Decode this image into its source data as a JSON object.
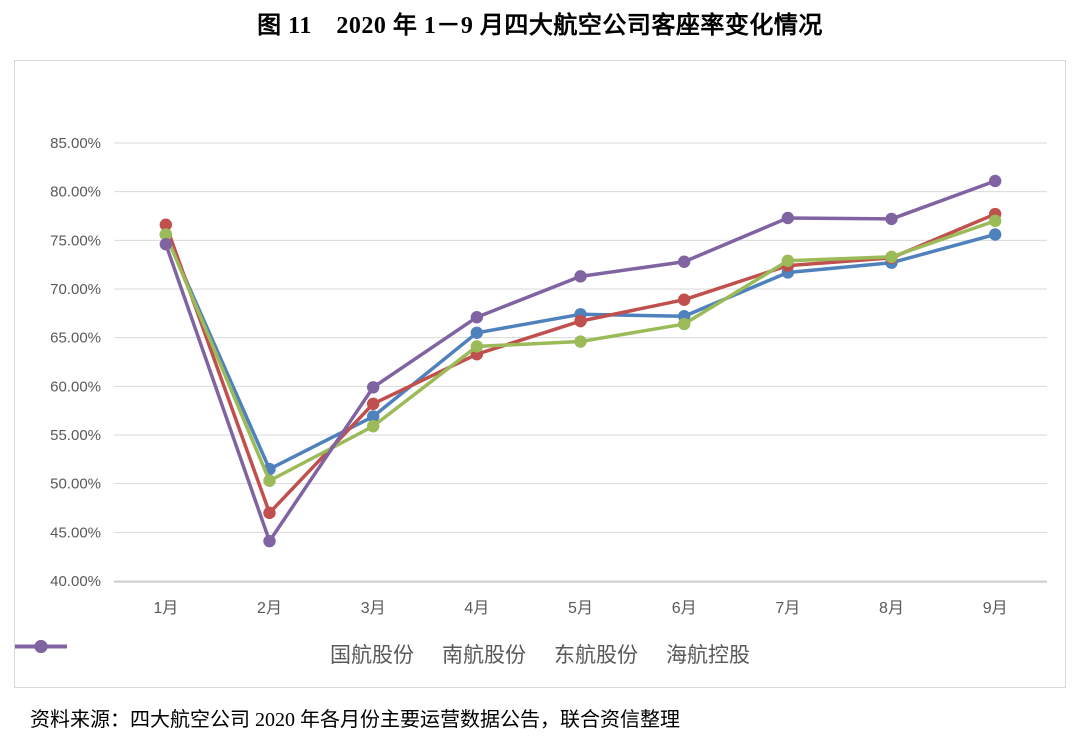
{
  "title": "图 11　2020 年 1－9 月四大航空公司客座率变化情况",
  "source_note": "资料来源：四大航空公司 2020 年各月份主要运营数据公告，联合资信整理",
  "colors": {
    "grid": "#d9d9d9",
    "axis": "#bfbfbf",
    "tick_text": "#595959",
    "frame_border": "#d9d9d9"
  },
  "chart_data": {
    "type": "line",
    "title": "图 11　2020 年 1－9 月四大航空公司客座率变化情况",
    "categories": [
      "1月",
      "2月",
      "3月",
      "4月",
      "5月",
      "6月",
      "7月",
      "8月",
      "9月"
    ],
    "series": [
      {
        "name": "国航股份",
        "color": "#4F81BD",
        "values": [
          75.6,
          51.5,
          56.9,
          65.5,
          67.4,
          67.2,
          71.7,
          72.7,
          75.6
        ]
      },
      {
        "name": "南航股份",
        "color": "#C0504D",
        "values": [
          76.6,
          47.0,
          58.2,
          63.3,
          66.7,
          68.9,
          72.4,
          73.2,
          77.7
        ]
      },
      {
        "name": "东航股份",
        "color": "#9BBB59",
        "values": [
          75.6,
          50.3,
          55.9,
          64.1,
          64.6,
          66.4,
          72.9,
          73.3,
          77.0
        ]
      },
      {
        "name": "海航控股",
        "color": "#8064A2",
        "values": [
          74.6,
          44.1,
          59.9,
          67.1,
          71.3,
          72.8,
          77.3,
          77.2,
          81.1
        ]
      }
    ],
    "xlabel": "",
    "ylabel": "",
    "ylim": [
      40,
      85
    ],
    "ytick_step": 5,
    "ytick_labels": [
      "40.00%",
      "45.00%",
      "50.00%",
      "55.00%",
      "60.00%",
      "65.00%",
      "70.00%",
      "75.00%",
      "80.00%",
      "85.00%"
    ],
    "grid": true,
    "legend_position": "bottom"
  }
}
